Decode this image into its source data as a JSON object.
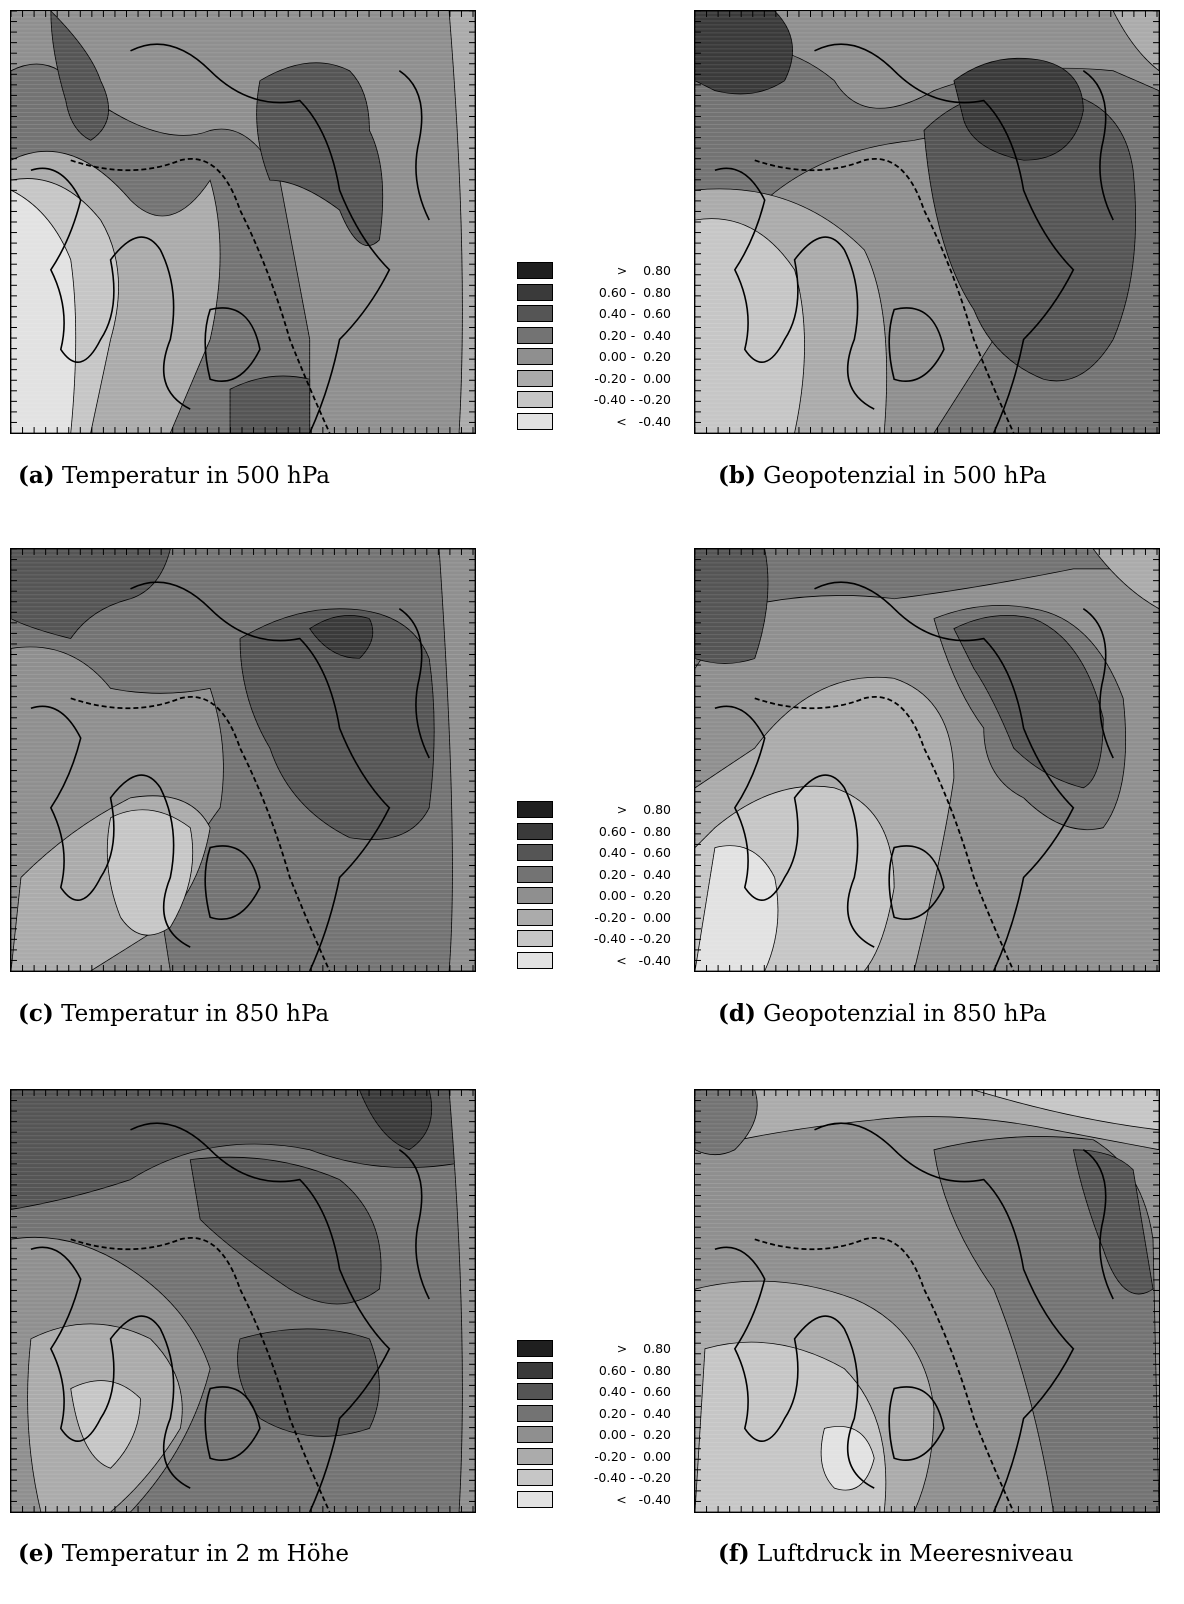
{
  "figure": {
    "panels": [
      {
        "id": "a",
        "label": "(a)",
        "title": "Temperatur in 500 hPa"
      },
      {
        "id": "b",
        "label": "(b)",
        "title": "Geopotenzial in 500 hPa"
      },
      {
        "id": "c",
        "label": "(c)",
        "title": "Temperatur in 850 hPa"
      },
      {
        "id": "d",
        "label": "(d)",
        "title": "Geopotenzial in 850 hPa"
      },
      {
        "id": "e",
        "label": "(e)",
        "title": "Temperatur in 2 m Höhe"
      },
      {
        "id": "f",
        "label": "(f)",
        "title": "Luftdruck in Meeresniveau"
      }
    ],
    "legend": {
      "classes": [
        {
          "range": ">    0.80",
          "color": "#1f1f1f"
        },
        {
          "range": "0.60 -  0.80",
          "color": "#3a3a3a"
        },
        {
          "range": "0.40 -  0.60",
          "color": "#555555"
        },
        {
          "range": "0.20 -  0.40",
          "color": "#737373"
        },
        {
          "range": "0.00 -  0.20",
          "color": "#8f8f8f"
        },
        {
          "range": "-0.20 -  0.00",
          "color": "#ababab"
        },
        {
          "range": "-0.40 - -0.20",
          "color": "#c6c6c6"
        },
        {
          "range": "<   -0.40",
          "color": "#e2e2e2"
        }
      ]
    }
  }
}
